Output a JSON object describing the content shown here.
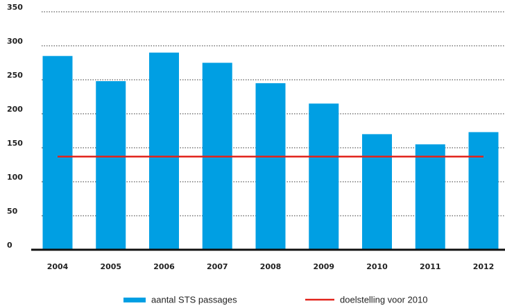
{
  "chart_data": {
    "type": "bar",
    "categories": [
      "2004",
      "2005",
      "2006",
      "2007",
      "2008",
      "2009",
      "2010",
      "2011",
      "2012"
    ],
    "series": [
      {
        "name": "aantal STS passages",
        "type": "bar",
        "color": "#009fe3",
        "values": [
          285,
          248,
          290,
          275,
          245,
          215,
          170,
          155,
          173
        ]
      },
      {
        "name": "doelstelling voor 2010",
        "type": "line",
        "color": "#e2231a",
        "values": [
          137,
          137,
          137,
          137,
          137,
          137,
          137,
          137,
          137
        ]
      }
    ],
    "ylim": [
      0,
      350
    ],
    "yticks": [
      0,
      50,
      100,
      150,
      200,
      250,
      300,
      350
    ],
    "grid": true
  }
}
